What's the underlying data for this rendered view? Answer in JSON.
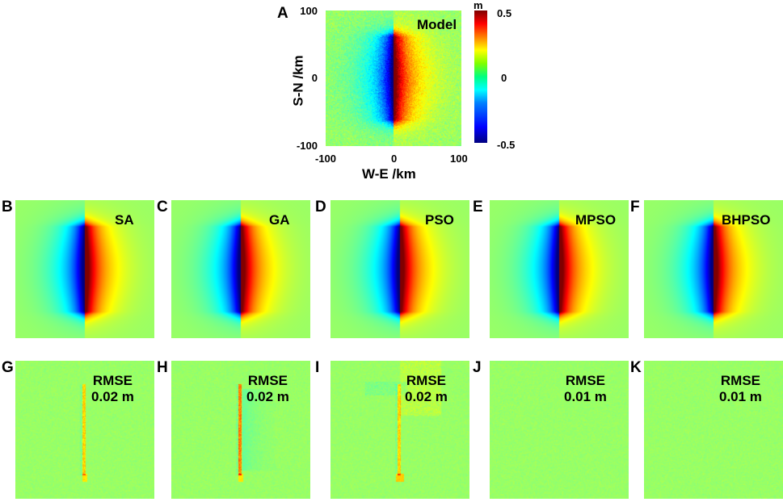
{
  "panel_a": {
    "letter": "A",
    "title": "Model",
    "y_axis_label": "S-N /km",
    "x_axis_label": "W-E /km",
    "y_ticks": [
      "100",
      "0",
      "-100"
    ],
    "x_ticks": [
      "-100",
      "0",
      "100"
    ],
    "colorbar": {
      "unit": "m",
      "ticks": [
        "0.5",
        "0",
        "-0.5"
      ]
    }
  },
  "inversion_panels": [
    {
      "letter": "B",
      "method": "SA"
    },
    {
      "letter": "C",
      "method": "GA"
    },
    {
      "letter": "D",
      "method": "PSO"
    },
    {
      "letter": "E",
      "method": "MPSO"
    },
    {
      "letter": "F",
      "method": "BHPSO"
    }
  ],
  "residual_panels": [
    {
      "letter": "G",
      "metric": "RMSE",
      "value": "0.02 m",
      "rmse_m": 0.02
    },
    {
      "letter": "H",
      "metric": "RMSE",
      "value": "0.02 m",
      "rmse_m": 0.02
    },
    {
      "letter": "I",
      "metric": "RMSE",
      "value": "0.02 m",
      "rmse_m": 0.02
    },
    {
      "letter": "J",
      "metric": "RMSE",
      "value": "0.01 m",
      "rmse_m": 0.01
    },
    {
      "letter": "K",
      "metric": "RMSE",
      "value": "0.01 m",
      "rmse_m": 0.01
    }
  ],
  "colors": {
    "background_green": "#55ef6e"
  }
}
